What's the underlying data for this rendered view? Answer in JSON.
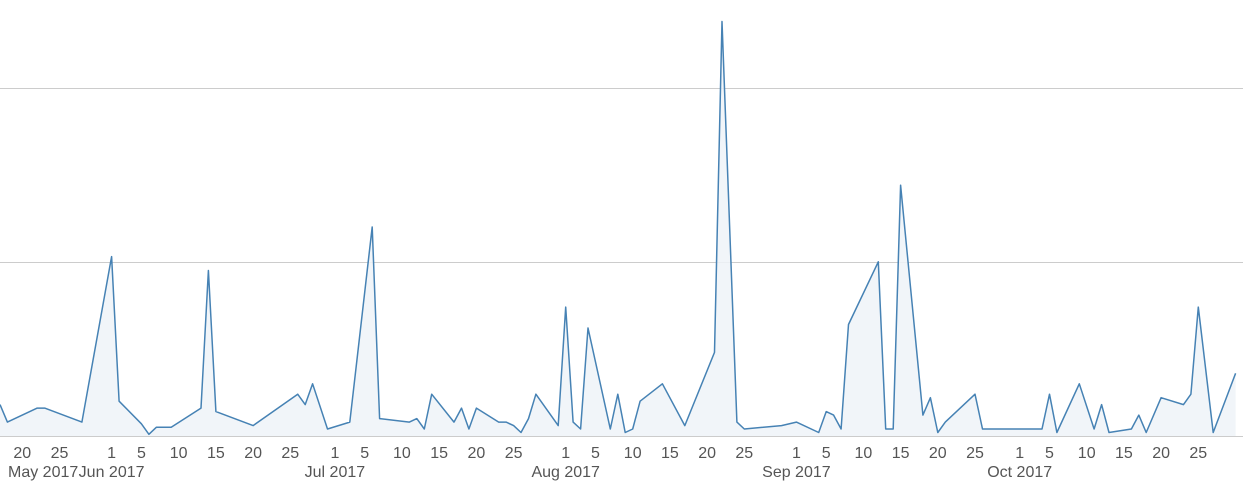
{
  "chart_data": {
    "type": "area",
    "title": "",
    "xlabel": "",
    "ylabel": "",
    "ylim": [
      0,
      24
    ],
    "y_gridlines": [
      10,
      20
    ],
    "grid": true,
    "legend": "none",
    "colors": {
      "line": "#4682b4",
      "fill": "#eef3f8",
      "grid": "#cccccc",
      "text": "#555555"
    },
    "x_tick_labels": [
      "20",
      "25",
      "1",
      "5",
      "10",
      "15",
      "20",
      "25",
      "1",
      "5",
      "10",
      "15",
      "20",
      "25",
      "1",
      "5",
      "10",
      "15",
      "20",
      "25",
      "1",
      "5",
      "10",
      "15",
      "20",
      "25",
      "1",
      "5",
      "10",
      "15",
      "20",
      "25"
    ],
    "x_tick_dates": [
      "2017-05-20",
      "2017-05-25",
      "2017-06-01",
      "2017-06-05",
      "2017-06-10",
      "2017-06-15",
      "2017-06-20",
      "2017-06-25",
      "2017-07-01",
      "2017-07-05",
      "2017-07-10",
      "2017-07-15",
      "2017-07-20",
      "2017-07-25",
      "2017-08-01",
      "2017-08-05",
      "2017-08-10",
      "2017-08-15",
      "2017-08-20",
      "2017-08-25",
      "2017-09-01",
      "2017-09-05",
      "2017-09-10",
      "2017-09-15",
      "2017-09-20",
      "2017-09-25",
      "2017-10-01",
      "2017-10-05",
      "2017-10-10",
      "2017-10-15",
      "2017-10-20",
      "2017-10-25"
    ],
    "month_labels": [
      {
        "label": "May 2017",
        "date": "2017-05-17"
      },
      {
        "label": "Jun 2017",
        "date": "2017-06-01"
      },
      {
        "label": "Jul 2017",
        "date": "2017-07-01"
      },
      {
        "label": "Aug 2017",
        "date": "2017-08-01"
      },
      {
        "label": "Sep 2017",
        "date": "2017-09-01"
      },
      {
        "label": "Oct 2017",
        "date": "2017-10-01"
      }
    ],
    "x_range": [
      "2017-05-17",
      "2017-10-31"
    ],
    "series": [
      {
        "points": [
          [
            "2017-05-17",
            1.8
          ],
          [
            "2017-05-18",
            0.8
          ],
          [
            "2017-05-22",
            1.6
          ],
          [
            "2017-05-23",
            1.6
          ],
          [
            "2017-05-28",
            0.8
          ],
          [
            "2017-06-01",
            10.3
          ],
          [
            "2017-06-02",
            2.0
          ],
          [
            "2017-06-05",
            0.7
          ],
          [
            "2017-06-06",
            0.1
          ],
          [
            "2017-06-07",
            0.5
          ],
          [
            "2017-06-09",
            0.5
          ],
          [
            "2017-06-13",
            1.6
          ],
          [
            "2017-06-14",
            9.5
          ],
          [
            "2017-06-15",
            1.4
          ],
          [
            "2017-06-20",
            0.6
          ],
          [
            "2017-06-26",
            2.4
          ],
          [
            "2017-06-27",
            1.8
          ],
          [
            "2017-06-28",
            3.0
          ],
          [
            "2017-06-30",
            0.4
          ],
          [
            "2017-07-03",
            0.8
          ],
          [
            "2017-07-06",
            12.0
          ],
          [
            "2017-07-07",
            1.0
          ],
          [
            "2017-07-11",
            0.8
          ],
          [
            "2017-07-12",
            1.0
          ],
          [
            "2017-07-13",
            0.4
          ],
          [
            "2017-07-14",
            2.4
          ],
          [
            "2017-07-17",
            0.8
          ],
          [
            "2017-07-18",
            1.6
          ],
          [
            "2017-07-19",
            0.4
          ],
          [
            "2017-07-20",
            1.6
          ],
          [
            "2017-07-23",
            0.8
          ],
          [
            "2017-07-24",
            0.8
          ],
          [
            "2017-07-25",
            0.6
          ],
          [
            "2017-07-26",
            0.2
          ],
          [
            "2017-07-27",
            1.0
          ],
          [
            "2017-07-28",
            2.4
          ],
          [
            "2017-07-31",
            0.6
          ],
          [
            "2017-08-01",
            7.4
          ],
          [
            "2017-08-02",
            0.8
          ],
          [
            "2017-08-03",
            0.4
          ],
          [
            "2017-08-04",
            6.2
          ],
          [
            "2017-08-07",
            0.4
          ],
          [
            "2017-08-08",
            2.4
          ],
          [
            "2017-08-09",
            0.2
          ],
          [
            "2017-08-10",
            0.4
          ],
          [
            "2017-08-11",
            2.0
          ],
          [
            "2017-08-14",
            3.0
          ],
          [
            "2017-08-17",
            0.6
          ],
          [
            "2017-08-21",
            4.8
          ],
          [
            "2017-08-22",
            23.8
          ],
          [
            "2017-08-24",
            0.8
          ],
          [
            "2017-08-25",
            0.4
          ],
          [
            "2017-08-30",
            0.6
          ],
          [
            "2017-09-01",
            0.8
          ],
          [
            "2017-09-04",
            0.2
          ],
          [
            "2017-09-05",
            1.4
          ],
          [
            "2017-09-06",
            1.2
          ],
          [
            "2017-09-07",
            0.4
          ],
          [
            "2017-09-08",
            6.4
          ],
          [
            "2017-09-12",
            10.0
          ],
          [
            "2017-09-13",
            0.4
          ],
          [
            "2017-09-14",
            0.4
          ],
          [
            "2017-09-15",
            14.4
          ],
          [
            "2017-09-18",
            1.2
          ],
          [
            "2017-09-19",
            2.2
          ],
          [
            "2017-09-20",
            0.2
          ],
          [
            "2017-09-21",
            0.8
          ],
          [
            "2017-09-25",
            2.4
          ],
          [
            "2017-09-26",
            0.4
          ],
          [
            "2017-10-04",
            0.4
          ],
          [
            "2017-10-05",
            2.4
          ],
          [
            "2017-10-06",
            0.2
          ],
          [
            "2017-10-09",
            3.0
          ],
          [
            "2017-10-11",
            0.4
          ],
          [
            "2017-10-12",
            1.8
          ],
          [
            "2017-10-13",
            0.2
          ],
          [
            "2017-10-16",
            0.4
          ],
          [
            "2017-10-17",
            1.2
          ],
          [
            "2017-10-18",
            0.2
          ],
          [
            "2017-10-20",
            2.2
          ],
          [
            "2017-10-23",
            1.8
          ],
          [
            "2017-10-24",
            2.4
          ],
          [
            "2017-10-25",
            7.4
          ],
          [
            "2017-10-27",
            0.2
          ],
          [
            "2017-10-30",
            3.6
          ]
        ]
      }
    ]
  }
}
